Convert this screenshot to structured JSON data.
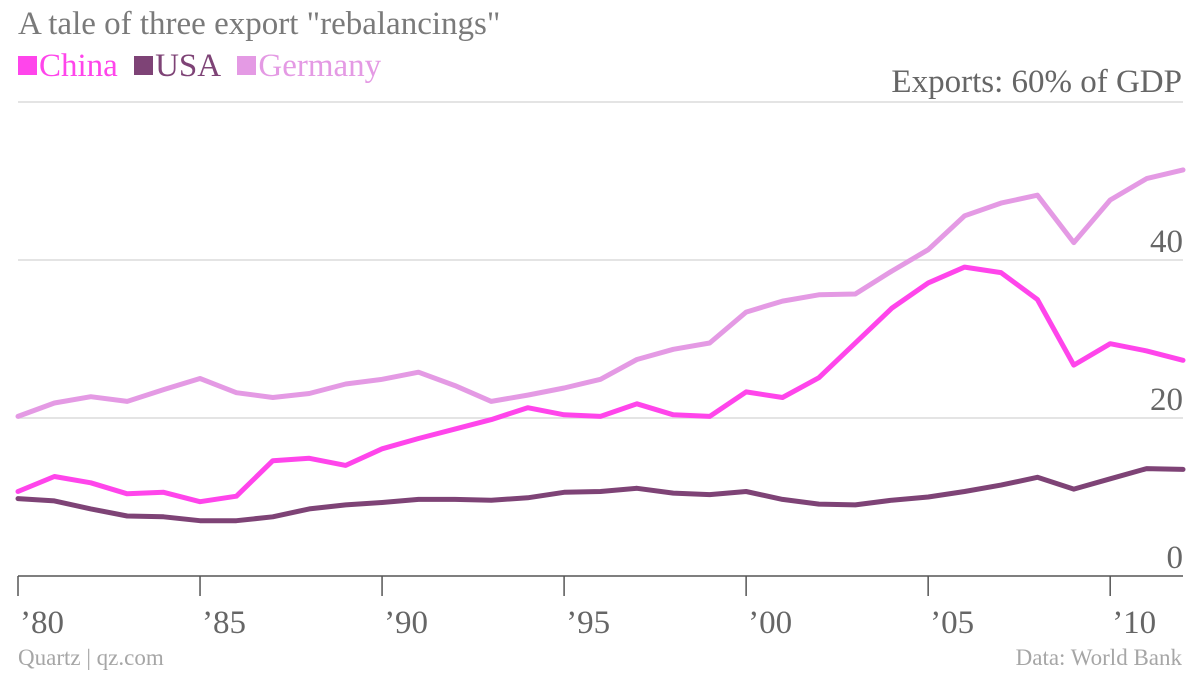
{
  "title": "A tale of three export \"rebalancings\"",
  "unit_label": "Exports: 60% of GDP",
  "footer": {
    "source_left": "Quartz | qz.com",
    "source_right": "Data: World Bank"
  },
  "chart_data": {
    "type": "line",
    "title": "A tale of three export \"rebalancings\"",
    "ylabel": "Exports: 60% of GDP",
    "xlim": [
      1980,
      2012
    ],
    "ylim": [
      0,
      60
    ],
    "yticks": [
      0,
      20,
      40
    ],
    "xticks": [
      1980,
      1985,
      1990,
      1995,
      2000,
      2005,
      2010
    ],
    "xtick_labels": [
      "’80",
      "’85",
      "’90",
      "’95",
      "’00",
      "’05",
      "’10"
    ],
    "grid": true,
    "legend_position": "top-left",
    "x": [
      1980,
      1981,
      1982,
      1983,
      1984,
      1985,
      1986,
      1987,
      1988,
      1989,
      1990,
      1991,
      1992,
      1993,
      1994,
      1995,
      1996,
      1997,
      1998,
      1999,
      2000,
      2001,
      2002,
      2003,
      2004,
      2005,
      2006,
      2007,
      2008,
      2009,
      2010,
      2011,
      2012
    ],
    "series": [
      {
        "name": "China",
        "color": "#ff45eb",
        "values": [
          10.7,
          12.6,
          11.8,
          10.4,
          10.6,
          9.4,
          10.1,
          14.6,
          14.9,
          14.0,
          16.1,
          17.4,
          18.6,
          19.8,
          21.3,
          20.4,
          20.2,
          21.8,
          20.4,
          20.2,
          23.3,
          22.6,
          25.1,
          29.5,
          33.9,
          37.1,
          39.1,
          38.4,
          35.0,
          26.7,
          29.4,
          28.5,
          27.3
        ]
      },
      {
        "name": "USA",
        "color": "#7e4376",
        "values": [
          9.8,
          9.5,
          8.5,
          7.6,
          7.5,
          7.0,
          7.0,
          7.5,
          8.5,
          9.0,
          9.3,
          9.7,
          9.7,
          9.6,
          9.9,
          10.6,
          10.7,
          11.1,
          10.5,
          10.3,
          10.7,
          9.7,
          9.1,
          9.0,
          9.6,
          10.0,
          10.7,
          11.5,
          12.5,
          11.0,
          12.3,
          13.6,
          13.5
        ]
      },
      {
        "name": "Germany",
        "color": "#e49ae4",
        "values": [
          20.2,
          21.9,
          22.7,
          22.1,
          23.6,
          25.0,
          23.2,
          22.6,
          23.1,
          24.3,
          24.9,
          25.8,
          24.1,
          22.1,
          22.9,
          23.8,
          24.9,
          27.4,
          28.7,
          29.5,
          33.4,
          34.8,
          35.6,
          35.7,
          38.6,
          41.3,
          45.6,
          47.2,
          48.2,
          42.2,
          47.6,
          50.3,
          51.4
        ]
      }
    ]
  }
}
